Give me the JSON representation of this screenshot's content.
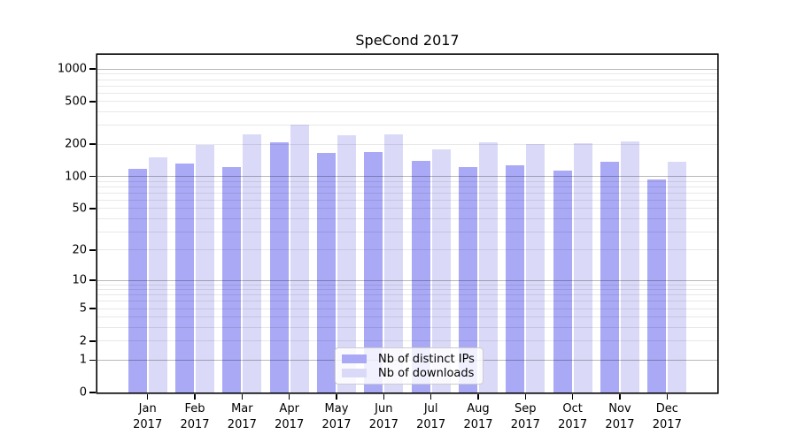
{
  "chart_data": {
    "type": "bar",
    "title": "SpeCond 2017",
    "categories": [
      "Jan 2017",
      "Feb 2017",
      "Mar 2017",
      "Apr 2017",
      "May 2017",
      "Jun 2017",
      "Jul 2017",
      "Aug 2017",
      "Sep 2017",
      "Oct 2017",
      "Nov 2017",
      "Dec 2017"
    ],
    "series": [
      {
        "name": "Nb of distinct IPs",
        "color": "#a9a9f6",
        "values": [
          117,
          133,
          123,
          210,
          166,
          169,
          141,
          122,
          127,
          114,
          137,
          94
        ]
      },
      {
        "name": "Nb of downloads",
        "color": "#dadaf8",
        "values": [
          151,
          196,
          247,
          305,
          245,
          247,
          179,
          210,
          200,
          204,
          211,
          137
        ]
      }
    ],
    "xlabel": "",
    "ylabel": "",
    "yscale": "log1p",
    "yticks": [
      0,
      1,
      2,
      5,
      10,
      20,
      50,
      100,
      200,
      500,
      1000
    ],
    "ylim": [
      0,
      1360
    ],
    "grid": {
      "show": true,
      "major_color": "rgba(0,0,0,0.28)",
      "minor_color": "rgba(0,0,0,0.09)"
    },
    "legend": {
      "position": "inside-bottom-center"
    },
    "axis_color": "#000000",
    "background_color": "#ffffff"
  }
}
